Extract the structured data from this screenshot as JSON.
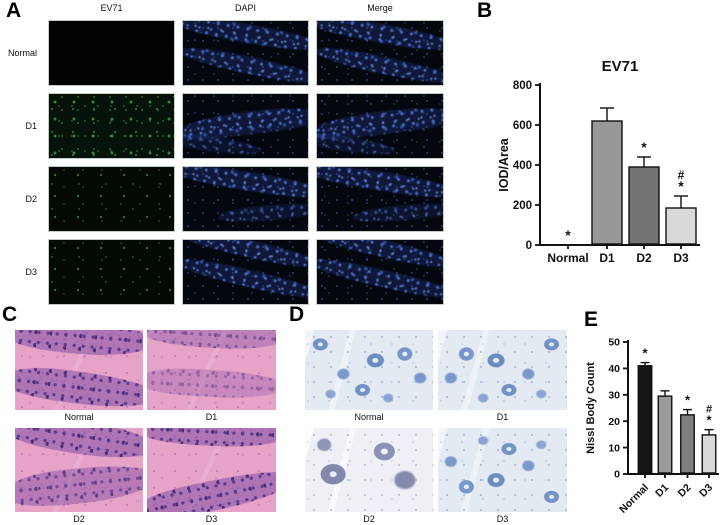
{
  "panels": {
    "A": {
      "label": "A",
      "columns": [
        "EV71",
        "DAPI",
        "Merge"
      ],
      "rows": [
        "Normal",
        "D1",
        "D2",
        "D3"
      ]
    },
    "B": {
      "label": "B"
    },
    "C": {
      "label": "C",
      "labels": [
        "Normal",
        "D1",
        "D2",
        "D3"
      ]
    },
    "D": {
      "label": "D",
      "labels": [
        "Normal",
        "D1",
        "D2",
        "D3"
      ]
    },
    "E": {
      "label": "E"
    }
  },
  "chart_data": [
    {
      "id": "chart-ev71",
      "type": "bar",
      "title": "EV71",
      "xlabel": "",
      "ylabel": "IOD/Area",
      "categories": [
        "Normal",
        "D1",
        "D2",
        "D3"
      ],
      "values": [
        0,
        620,
        390,
        185
      ],
      "errors": [
        0,
        65,
        50,
        60
      ],
      "annotations": [
        [
          "*"
        ],
        [],
        [
          "*"
        ],
        [
          "#",
          "*"
        ]
      ],
      "bar_colors": [
        "#989898",
        "#989898",
        "#737373",
        "#d9d9d9"
      ],
      "ylim": [
        0,
        800
      ],
      "yticks": [
        0,
        200,
        400,
        600,
        800
      ],
      "xlabel_rotation": 0,
      "grid": false,
      "legend": "none"
    },
    {
      "id": "chart-nissl",
      "type": "bar",
      "title": "",
      "xlabel": "",
      "ylabel": "Nissl Body Count",
      "categories": [
        "Normal",
        "D1",
        "D2",
        "D3"
      ],
      "values": [
        41,
        29.5,
        22.4,
        14.8
      ],
      "errors": [
        1.2,
        2,
        2,
        2
      ],
      "annotations": [
        [
          "*"
        ],
        [],
        [
          "*"
        ],
        [
          "#",
          "*"
        ]
      ],
      "bar_colors": [
        "#161616",
        "#9b9b9b",
        "#7e7e7e",
        "#d9d9d9"
      ],
      "ylim": [
        0,
        50
      ],
      "yticks": [
        0,
        10,
        20,
        30,
        40,
        50
      ],
      "xlabel_rotation": -45,
      "grid": false,
      "legend": "none"
    }
  ]
}
